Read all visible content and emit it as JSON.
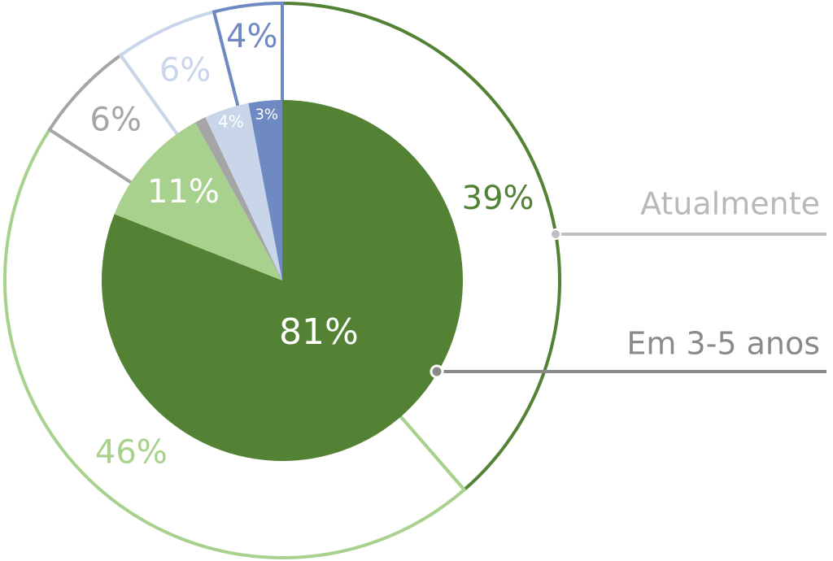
{
  "chart_data": {
    "type": "pie",
    "colors": [
      "#548235",
      "#a9d18e",
      "#a5a5a5",
      "#c9d6ea",
      "#6f8ac2"
    ],
    "series": [
      {
        "name": "Atualmente",
        "values": [
          39,
          46,
          6,
          6,
          4
        ],
        "value_labels": [
          "39%",
          "46%",
          "6%",
          "6%",
          "4%"
        ]
      },
      {
        "name": "Em 3-5 anos",
        "values": [
          81,
          11,
          1,
          4,
          3
        ],
        "value_labels": [
          "81%",
          "11%",
          null,
          "4%",
          "3%"
        ]
      }
    ]
  }
}
